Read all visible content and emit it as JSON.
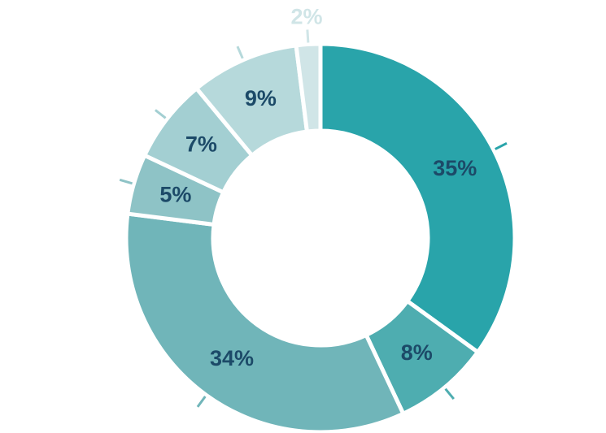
{
  "chart_data": {
    "type": "donut",
    "values": [
      35,
      8,
      34,
      5,
      7,
      9,
      2
    ],
    "value_labels": [
      "35%",
      "8%",
      "34%",
      "5%",
      "7%",
      "9%",
      "2%"
    ],
    "colors": [
      "#29a4aa",
      "#4eadb0",
      "#70b5b9",
      "#8ec3c6",
      "#a3cfd2",
      "#b6d9db",
      "#d0e5e7"
    ],
    "label_color": "#1c4a68"
  }
}
